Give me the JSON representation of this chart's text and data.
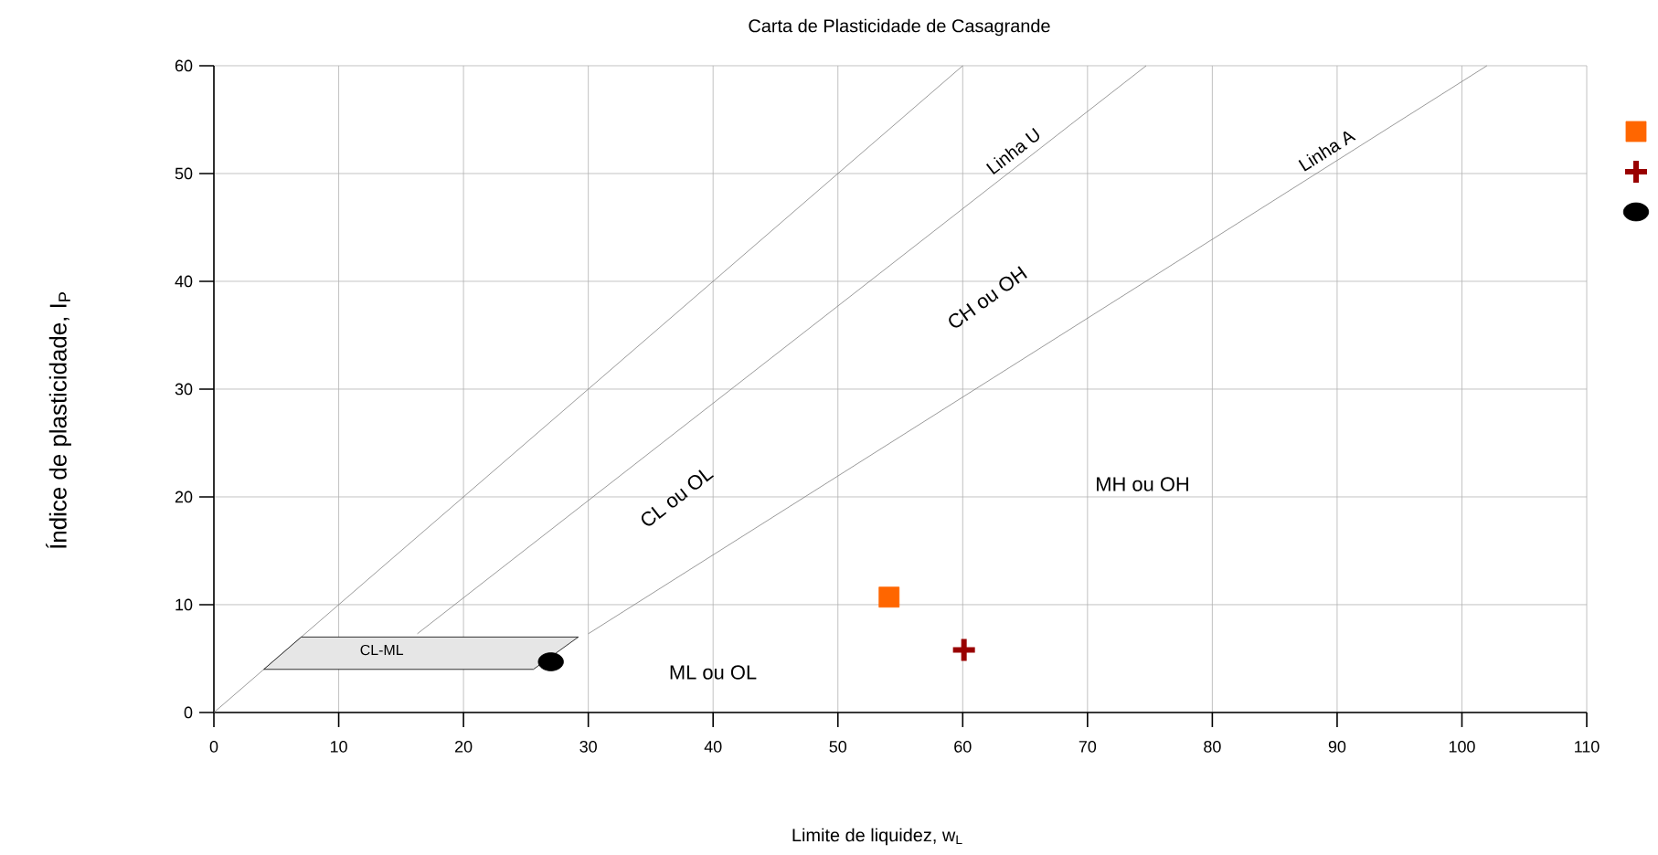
{
  "chart_data": {
    "type": "scatter",
    "title": "Carta de Plasticidade de Casagrande",
    "xlabel": "Limite de liquidez, w$_{L}$",
    "ylabel": "Índice de plasticidade, I$_{P}$",
    "xlim": [
      0,
      110
    ],
    "ylim": [
      0,
      60
    ],
    "xticks": [
      0,
      10,
      20,
      30,
      40,
      50,
      60,
      70,
      80,
      90,
      100,
      110
    ],
    "yticks": [
      0,
      10,
      20,
      30,
      40,
      50,
      60
    ],
    "grid": true,
    "legend": "right",
    "series": [
      {
        "type": "line",
        "color": "#808080",
        "x": [
          0,
          60
        ],
        "values": [
          0,
          60
        ]
      },
      {
        "type": "line",
        "name": "Linha U",
        "color": "#808080",
        "x": [
          16.3,
          74.7
        ],
        "values": [
          7.3,
          60
        ]
      },
      {
        "type": "line",
        "name": "Linha A",
        "color": "#808080",
        "x": [
          30,
          102
        ],
        "values": [
          7.3,
          60
        ]
      },
      {
        "type": "area",
        "name": "CL-ML",
        "color": "#e6e6e6",
        "x": [
          4,
          7,
          29.2,
          25.6
        ],
        "values": [
          4,
          7,
          7,
          4
        ]
      },
      {
        "marker": "square",
        "color": "#ff6600",
        "x": [
          54.1
        ],
        "values": [
          10.7
        ]
      },
      {
        "marker": "cross",
        "color": "#990000",
        "x": [
          60.1
        ],
        "values": [
          5.8
        ]
      },
      {
        "marker": "circle",
        "color": "#000000",
        "x": [
          27
        ],
        "values": [
          4.7
        ]
      }
    ],
    "annotations": [
      "CH ou OH",
      "CL ou OL",
      "MH ou OH",
      "ML ou OL"
    ]
  }
}
